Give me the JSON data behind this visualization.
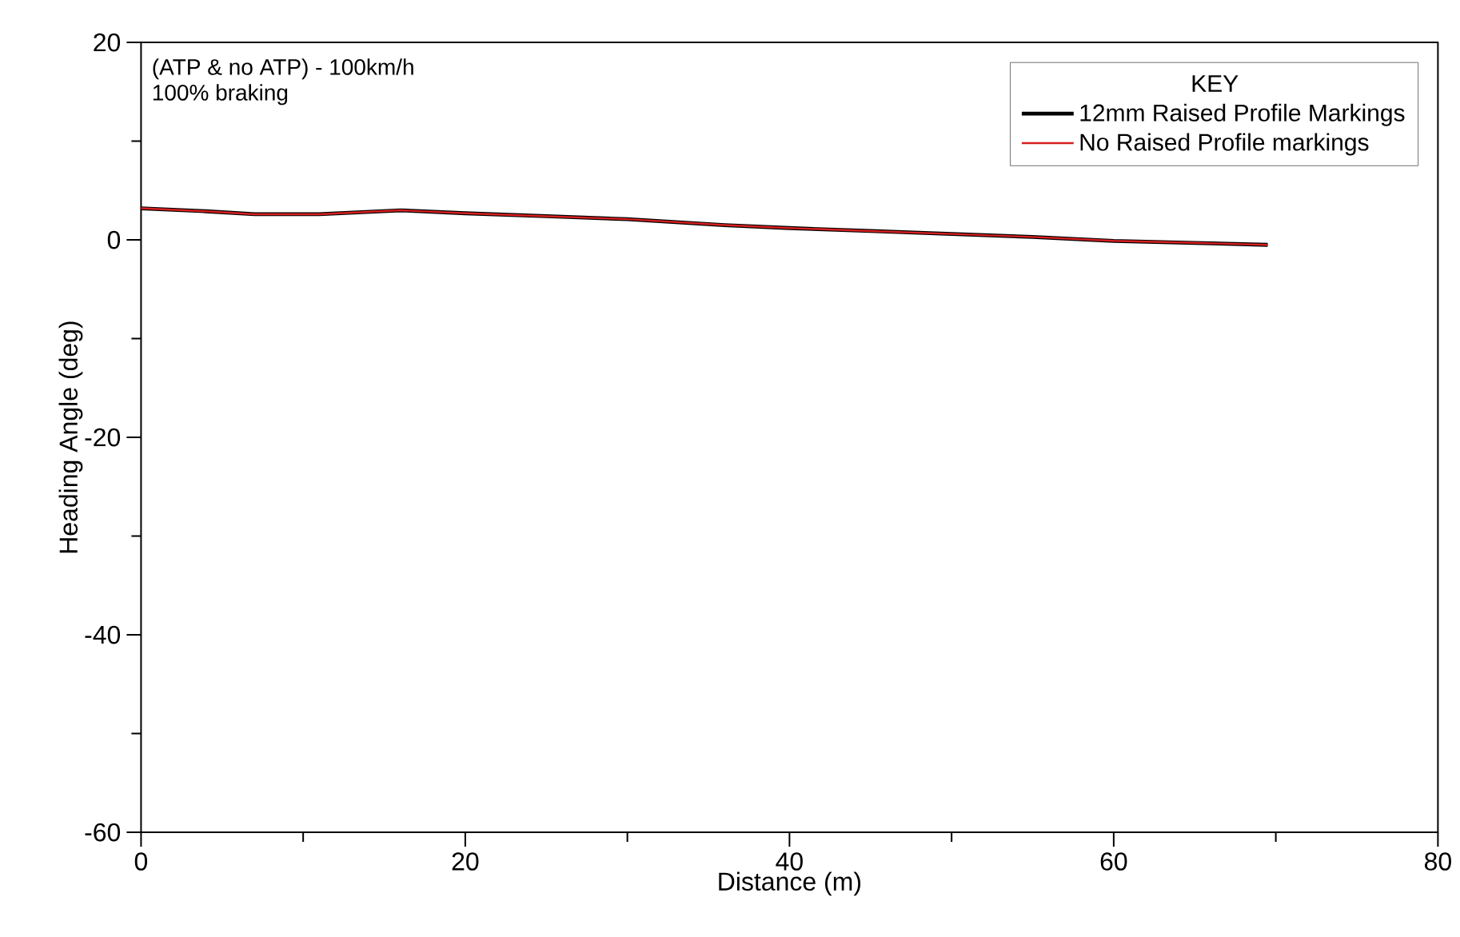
{
  "chart_data": {
    "type": "line",
    "title": "(ATP & no ATP) - 100km/h",
    "subtitle": "100% braking",
    "xlabel": "Distance (m)",
    "ylabel": "Heading Angle (deg)",
    "legend_title": "KEY",
    "x": [
      0,
      4,
      7,
      11,
      16,
      20,
      25,
      30,
      36,
      40,
      45,
      50,
      55,
      60,
      65,
      69.5
    ],
    "series": [
      {
        "name": "12mm Raised Profile Markings",
        "color": "#000000",
        "values": [
          3.2,
          2.9,
          2.6,
          2.6,
          3.0,
          2.7,
          2.4,
          2.1,
          1.5,
          1.2,
          0.9,
          0.6,
          0.3,
          -0.1,
          -0.3,
          -0.5
        ]
      },
      {
        "name": "No Raised Profile markings",
        "color": "#d62020",
        "values": [
          3.2,
          2.9,
          2.6,
          2.6,
          3.0,
          2.7,
          2.4,
          2.1,
          1.5,
          1.2,
          0.9,
          0.6,
          0.3,
          -0.1,
          -0.3,
          -0.5
        ]
      }
    ],
    "xlim": [
      0,
      80
    ],
    "ylim": [
      -60,
      20
    ],
    "xticks": [
      0,
      20,
      40,
      60,
      80
    ],
    "yticks": [
      -60,
      -40,
      -20,
      0,
      20
    ],
    "grid": false,
    "legend": "top right",
    "marker": "none",
    "line_style": "solid"
  }
}
